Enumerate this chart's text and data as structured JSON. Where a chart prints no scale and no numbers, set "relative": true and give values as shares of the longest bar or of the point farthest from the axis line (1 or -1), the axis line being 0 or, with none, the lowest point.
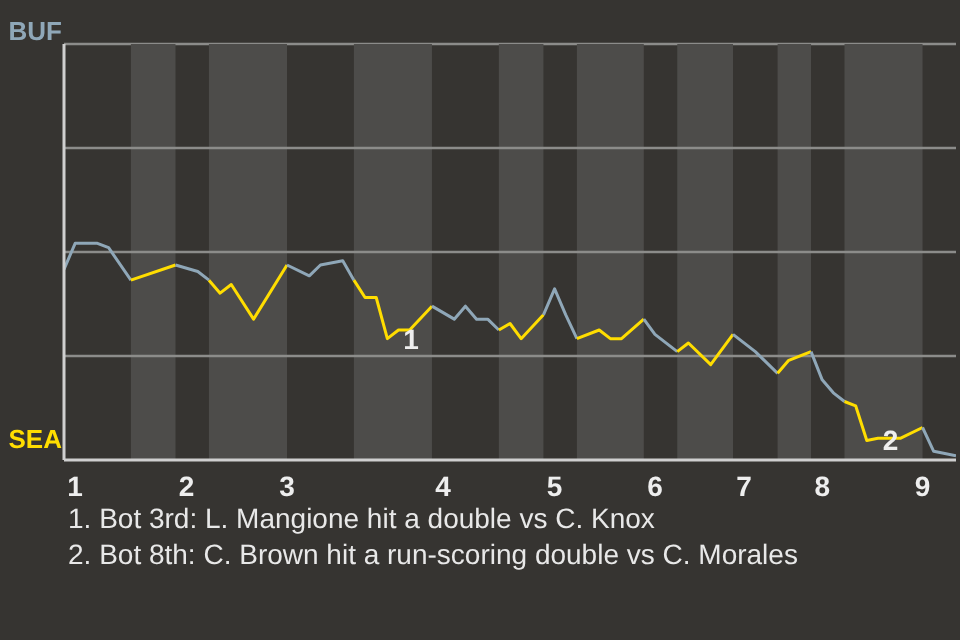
{
  "chart_data": {
    "type": "line",
    "relative": true,
    "categories": [
      null,
      "1",
      null,
      null,
      null,
      null,
      null,
      null,
      null,
      null,
      null,
      "2",
      null,
      null,
      null,
      null,
      null,
      null,
      null,
      null,
      "3",
      null,
      null,
      null,
      null,
      null,
      null,
      null,
      null,
      null,
      null,
      null,
      null,
      null,
      "4",
      null,
      null,
      null,
      null,
      null,
      null,
      null,
      null,
      null,
      "5",
      null,
      null,
      null,
      null,
      null,
      null,
      null,
      null,
      "6",
      null,
      null,
      null,
      null,
      null,
      null,
      null,
      "7",
      null,
      null,
      null,
      null,
      null,
      null,
      "8",
      null,
      null,
      null,
      null,
      null,
      null,
      null,
      null,
      "9",
      null,
      null,
      null
    ],
    "marker": "none",
    "line_style": "solid",
    "ref_lines": [
      {
        "axis": "y",
        "value": 0.48,
        "color": "#8c8c8a"
      },
      {
        "axis": "y",
        "value": 0.96,
        "color": "#8c8c8a"
      },
      {
        "axis": "y",
        "value": 1.44,
        "color": "#8c8c8a"
      }
    ],
    "series": [
      {
        "color": "#8fa7b8",
        "values": [
          0.88,
          1,
          null,
          1,
          0.98,
          null,
          0.83,
          null,
          null,
          null,
          null,
          null,
          null,
          null,
          null,
          null,
          null,
          null,
          null,
          null,
          null,
          null,
          null,
          null,
          null,
          null,
          null,
          null,
          null,
          null,
          null,
          null,
          null,
          null,
          null,
          null,
          null,
          null,
          null,
          null,
          null,
          null,
          null,
          null,
          null,
          null,
          null,
          null,
          null,
          null,
          null,
          null,
          null,
          null,
          null,
          null,
          null,
          null,
          null,
          null,
          null,
          null,
          null,
          null,
          null,
          null,
          null,
          null,
          null,
          null,
          null,
          null,
          null,
          null,
          null,
          null,
          null,
          null,
          null,
          null,
          null
        ]
      },
      {
        "color": "#ffdd00",
        "values": [
          null,
          null,
          null,
          null,
          null,
          null,
          0.83,
          null,
          null,
          null,
          0.9,
          null,
          null,
          null,
          null,
          null,
          null,
          null,
          null,
          null,
          null,
          null,
          null,
          null,
          null,
          null,
          null,
          null,
          null,
          null,
          null,
          null,
          null,
          null,
          null,
          null,
          null,
          null,
          null,
          null,
          null,
          null,
          null,
          null,
          null,
          null,
          null,
          null,
          null,
          null,
          null,
          null,
          null,
          null,
          null,
          null,
          null,
          null,
          null,
          null,
          null,
          null,
          null,
          null,
          null,
          null,
          null,
          null,
          null,
          null,
          null,
          null,
          null,
          null,
          null,
          null,
          null,
          null,
          null,
          null,
          null
        ]
      },
      {
        "color": "#8fa7b8",
        "values": [
          null,
          null,
          null,
          null,
          null,
          null,
          null,
          null,
          null,
          null,
          0.9,
          null,
          0.87,
          0.83,
          null,
          null,
          null,
          null,
          null,
          null,
          null,
          null,
          null,
          null,
          null,
          null,
          null,
          null,
          null,
          null,
          null,
          null,
          null,
          null,
          null,
          null,
          null,
          null,
          null,
          null,
          null,
          null,
          null,
          null,
          null,
          null,
          null,
          null,
          null,
          null,
          null,
          null,
          null,
          null,
          null,
          null,
          null,
          null,
          null,
          null,
          null,
          null,
          null,
          null,
          null,
          null,
          null,
          null,
          null,
          null,
          null,
          null,
          null,
          null,
          null,
          null,
          null,
          null,
          null,
          null,
          null
        ]
      },
      {
        "color": "#ffdd00",
        "values": [
          null,
          null,
          null,
          null,
          null,
          null,
          null,
          null,
          null,
          null,
          null,
          null,
          null,
          0.83,
          0.77,
          0.81,
          null,
          0.65,
          null,
          null,
          0.9,
          null,
          null,
          null,
          null,
          null,
          null,
          null,
          null,
          null,
          null,
          null,
          null,
          null,
          null,
          null,
          null,
          null,
          null,
          null,
          null,
          null,
          null,
          null,
          null,
          null,
          null,
          null,
          null,
          null,
          null,
          null,
          null,
          null,
          null,
          null,
          null,
          null,
          null,
          null,
          null,
          null,
          null,
          null,
          null,
          null,
          null,
          null,
          null,
          null,
          null,
          null,
          null,
          null,
          null,
          null,
          null,
          null,
          null,
          null,
          null
        ]
      },
      {
        "color": "#8fa7b8",
        "values": [
          null,
          null,
          null,
          null,
          null,
          null,
          null,
          null,
          null,
          null,
          null,
          null,
          null,
          null,
          null,
          null,
          null,
          null,
          null,
          null,
          0.9,
          null,
          0.85,
          0.9,
          null,
          0.92,
          0.83,
          null,
          null,
          null,
          null,
          null,
          null,
          null,
          null,
          null,
          null,
          null,
          null,
          null,
          null,
          null,
          null,
          null,
          null,
          null,
          null,
          null,
          null,
          null,
          null,
          null,
          null,
          null,
          null,
          null,
          null,
          null,
          null,
          null,
          null,
          null,
          null,
          null,
          null,
          null,
          null,
          null,
          null,
          null,
          null,
          null,
          null,
          null,
          null,
          null,
          null,
          null,
          null,
          null,
          null
        ]
      },
      {
        "color": "#ffdd00",
        "values": [
          null,
          null,
          null,
          null,
          null,
          null,
          null,
          null,
          null,
          null,
          null,
          null,
          null,
          null,
          null,
          null,
          null,
          null,
          null,
          null,
          null,
          null,
          null,
          null,
          null,
          null,
          0.83,
          0.75,
          0.75,
          0.56,
          0.6,
          0.6,
          null,
          0.71,
          null,
          null,
          null,
          null,
          null,
          null,
          null,
          null,
          null,
          null,
          null,
          null,
          null,
          null,
          null,
          null,
          null,
          null,
          null,
          null,
          null,
          null,
          null,
          null,
          null,
          null,
          null,
          null,
          null,
          null,
          null,
          null,
          null,
          null,
          null,
          null,
          null,
          null,
          null,
          null,
          null,
          null,
          null,
          null,
          null,
          null,
          null
        ]
      },
      {
        "color": "#8fa7b8",
        "values": [
          null,
          null,
          null,
          null,
          null,
          null,
          null,
          null,
          null,
          null,
          null,
          null,
          null,
          null,
          null,
          null,
          null,
          null,
          null,
          null,
          null,
          null,
          null,
          null,
          null,
          null,
          null,
          null,
          null,
          null,
          null,
          null,
          null,
          0.71,
          null,
          0.65,
          0.71,
          0.65,
          0.65,
          0.6,
          null,
          null,
          null,
          null,
          null,
          null,
          null,
          null,
          null,
          null,
          null,
          null,
          null,
          null,
          null,
          null,
          null,
          null,
          null,
          null,
          null,
          null,
          null,
          null,
          null,
          null,
          null,
          null,
          null,
          null,
          null,
          null,
          null,
          null,
          null,
          null,
          null,
          null,
          null,
          null,
          null
        ]
      },
      {
        "color": "#ffdd00",
        "values": [
          null,
          null,
          null,
          null,
          null,
          null,
          null,
          null,
          null,
          null,
          null,
          null,
          null,
          null,
          null,
          null,
          null,
          null,
          null,
          null,
          null,
          null,
          null,
          null,
          null,
          null,
          null,
          null,
          null,
          null,
          null,
          null,
          null,
          null,
          null,
          null,
          null,
          null,
          null,
          0.6,
          0.63,
          0.56,
          null,
          0.67,
          null,
          null,
          null,
          null,
          null,
          null,
          null,
          null,
          null,
          null,
          null,
          null,
          null,
          null,
          null,
          null,
          null,
          null,
          null,
          null,
          null,
          null,
          null,
          null,
          null,
          null,
          null,
          null,
          null,
          null,
          null,
          null,
          null,
          null,
          null,
          null,
          null
        ]
      },
      {
        "color": "#8fa7b8",
        "values": [
          null,
          null,
          null,
          null,
          null,
          null,
          null,
          null,
          null,
          null,
          null,
          null,
          null,
          null,
          null,
          null,
          null,
          null,
          null,
          null,
          null,
          null,
          null,
          null,
          null,
          null,
          null,
          null,
          null,
          null,
          null,
          null,
          null,
          null,
          null,
          null,
          null,
          null,
          null,
          null,
          null,
          null,
          null,
          0.67,
          0.79,
          0.67,
          0.56,
          null,
          null,
          null,
          null,
          null,
          null,
          null,
          null,
          null,
          null,
          null,
          null,
          null,
          null,
          null,
          null,
          null,
          null,
          null,
          null,
          null,
          null,
          null,
          null,
          null,
          null,
          null,
          null,
          null,
          null,
          null,
          null,
          null,
          null
        ]
      },
      {
        "color": "#ffdd00",
        "values": [
          null,
          null,
          null,
          null,
          null,
          null,
          null,
          null,
          null,
          null,
          null,
          null,
          null,
          null,
          null,
          null,
          null,
          null,
          null,
          null,
          null,
          null,
          null,
          null,
          null,
          null,
          null,
          null,
          null,
          null,
          null,
          null,
          null,
          null,
          null,
          null,
          null,
          null,
          null,
          null,
          null,
          null,
          null,
          null,
          null,
          null,
          0.56,
          null,
          0.6,
          0.56,
          0.56,
          null,
          0.65,
          null,
          null,
          null,
          null,
          null,
          null,
          null,
          null,
          null,
          null,
          null,
          null,
          null,
          null,
          null,
          null,
          null,
          null,
          null,
          null,
          null,
          null,
          null,
          null,
          null,
          null,
          null,
          null
        ]
      },
      {
        "color": "#8fa7b8",
        "values": [
          null,
          null,
          null,
          null,
          null,
          null,
          null,
          null,
          null,
          null,
          null,
          null,
          null,
          null,
          null,
          null,
          null,
          null,
          null,
          null,
          null,
          null,
          null,
          null,
          null,
          null,
          null,
          null,
          null,
          null,
          null,
          null,
          null,
          null,
          null,
          null,
          null,
          null,
          null,
          null,
          null,
          null,
          null,
          null,
          null,
          null,
          null,
          null,
          null,
          null,
          null,
          null,
          0.65,
          0.58,
          null,
          0.5,
          null,
          null,
          null,
          null,
          null,
          null,
          null,
          null,
          null,
          null,
          null,
          null,
          null,
          null,
          null,
          null,
          null,
          null,
          null,
          null,
          null,
          null,
          null,
          null,
          null
        ]
      },
      {
        "color": "#ffdd00",
        "values": [
          null,
          null,
          null,
          null,
          null,
          null,
          null,
          null,
          null,
          null,
          null,
          null,
          null,
          null,
          null,
          null,
          null,
          null,
          null,
          null,
          null,
          null,
          null,
          null,
          null,
          null,
          null,
          null,
          null,
          null,
          null,
          null,
          null,
          null,
          null,
          null,
          null,
          null,
          null,
          null,
          null,
          null,
          null,
          null,
          null,
          null,
          null,
          null,
          null,
          null,
          null,
          null,
          null,
          null,
          null,
          0.5,
          0.54,
          null,
          0.44,
          null,
          0.58,
          null,
          null,
          null,
          null,
          null,
          null,
          null,
          null,
          null,
          null,
          null,
          null,
          null,
          null,
          null,
          null,
          null,
          null,
          null,
          null
        ]
      },
      {
        "color": "#8fa7b8",
        "values": [
          null,
          null,
          null,
          null,
          null,
          null,
          null,
          null,
          null,
          null,
          null,
          null,
          null,
          null,
          null,
          null,
          null,
          null,
          null,
          null,
          null,
          null,
          null,
          null,
          null,
          null,
          null,
          null,
          null,
          null,
          null,
          null,
          null,
          null,
          null,
          null,
          null,
          null,
          null,
          null,
          null,
          null,
          null,
          null,
          null,
          null,
          null,
          null,
          null,
          null,
          null,
          null,
          null,
          null,
          null,
          null,
          null,
          null,
          null,
          null,
          0.58,
          null,
          0.5,
          null,
          0.4,
          null,
          null,
          null,
          null,
          null,
          null,
          null,
          null,
          null,
          null,
          null,
          null,
          null,
          null,
          null,
          null
        ]
      },
      {
        "color": "#ffdd00",
        "values": [
          null,
          null,
          null,
          null,
          null,
          null,
          null,
          null,
          null,
          null,
          null,
          null,
          null,
          null,
          null,
          null,
          null,
          null,
          null,
          null,
          null,
          null,
          null,
          null,
          null,
          null,
          null,
          null,
          null,
          null,
          null,
          null,
          null,
          null,
          null,
          null,
          null,
          null,
          null,
          null,
          null,
          null,
          null,
          null,
          null,
          null,
          null,
          null,
          null,
          null,
          null,
          null,
          null,
          null,
          null,
          null,
          null,
          null,
          null,
          null,
          null,
          null,
          null,
          null,
          0.4,
          0.46,
          null,
          0.5,
          null,
          null,
          null,
          null,
          null,
          null,
          null,
          null,
          null,
          null,
          null,
          null,
          null
        ]
      },
      {
        "color": "#8fa7b8",
        "values": [
          null,
          null,
          null,
          null,
          null,
          null,
          null,
          null,
          null,
          null,
          null,
          null,
          null,
          null,
          null,
          null,
          null,
          null,
          null,
          null,
          null,
          null,
          null,
          null,
          null,
          null,
          null,
          null,
          null,
          null,
          null,
          null,
          null,
          null,
          null,
          null,
          null,
          null,
          null,
          null,
          null,
          null,
          null,
          null,
          null,
          null,
          null,
          null,
          null,
          null,
          null,
          null,
          null,
          null,
          null,
          null,
          null,
          null,
          null,
          null,
          null,
          null,
          null,
          null,
          null,
          null,
          null,
          0.5,
          0.37,
          0.31,
          0.27,
          null,
          null,
          null,
          null,
          null,
          null,
          null,
          null,
          null,
          null
        ]
      },
      {
        "color": "#ffdd00",
        "values": [
          null,
          null,
          null,
          null,
          null,
          null,
          null,
          null,
          null,
          null,
          null,
          null,
          null,
          null,
          null,
          null,
          null,
          null,
          null,
          null,
          null,
          null,
          null,
          null,
          null,
          null,
          null,
          null,
          null,
          null,
          null,
          null,
          null,
          null,
          null,
          null,
          null,
          null,
          null,
          null,
          null,
          null,
          null,
          null,
          null,
          null,
          null,
          null,
          null,
          null,
          null,
          null,
          null,
          null,
          null,
          null,
          null,
          null,
          null,
          null,
          null,
          null,
          null,
          null,
          null,
          null,
          null,
          null,
          null,
          null,
          0.27,
          0.25,
          0.09,
          0.1,
          null,
          0.1,
          null,
          0.15,
          null,
          null,
          null
        ]
      },
      {
        "color": "#8fa7b8",
        "values": [
          null,
          null,
          null,
          null,
          null,
          null,
          null,
          null,
          null,
          null,
          null,
          null,
          null,
          null,
          null,
          null,
          null,
          null,
          null,
          null,
          null,
          null,
          null,
          null,
          null,
          null,
          null,
          null,
          null,
          null,
          null,
          null,
          null,
          null,
          null,
          null,
          null,
          null,
          null,
          null,
          null,
          null,
          null,
          null,
          null,
          null,
          null,
          null,
          null,
          null,
          null,
          null,
          null,
          null,
          null,
          null,
          null,
          null,
          null,
          null,
          null,
          null,
          null,
          null,
          null,
          null,
          null,
          null,
          null,
          null,
          null,
          null,
          null,
          null,
          null,
          null,
          null,
          0.15,
          0.04,
          0.03,
          0.02
        ]
      }
    ],
    "annotations": [
      "BUF",
      "SEA",
      {
        "text": "1",
        "y": 0.56
      },
      {
        "text": "2",
        "y": 0.09
      },
      "1. Bot 3rd: L. Mangione hit a double vs C. Knox",
      "2. Bot 8th: C. Brown hit a run-scoring double vs C. Morales"
    ]
  }
}
